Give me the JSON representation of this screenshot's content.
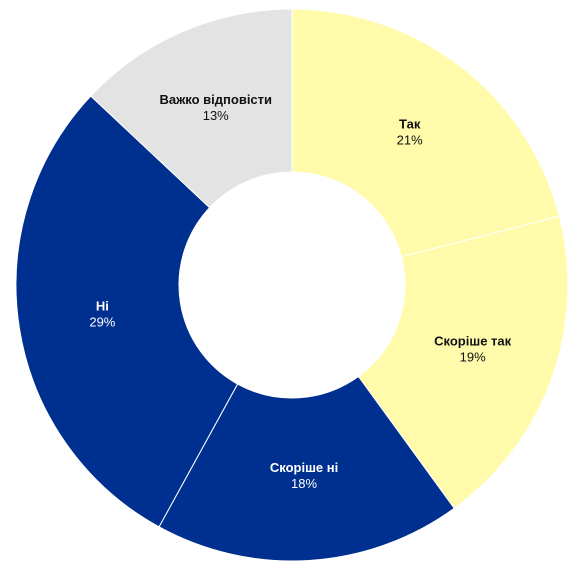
{
  "chart_data": {
    "type": "donut",
    "categories": [
      "Так",
      "Скоріше так",
      "Скоріше ні",
      "Ні",
      "Важко відповісти"
    ],
    "values": [
      21,
      19,
      18,
      29,
      13
    ],
    "value_labels": [
      "21%",
      "19%",
      "18%",
      "29%",
      "13%"
    ],
    "colors": [
      "#fffbab",
      "#fffbab",
      "#00308f",
      "#00308f",
      "#e3e3e3"
    ],
    "label_colors": [
      "#111111",
      "#111111",
      "#ffffff",
      "#ffffff",
      "#111111"
    ]
  }
}
